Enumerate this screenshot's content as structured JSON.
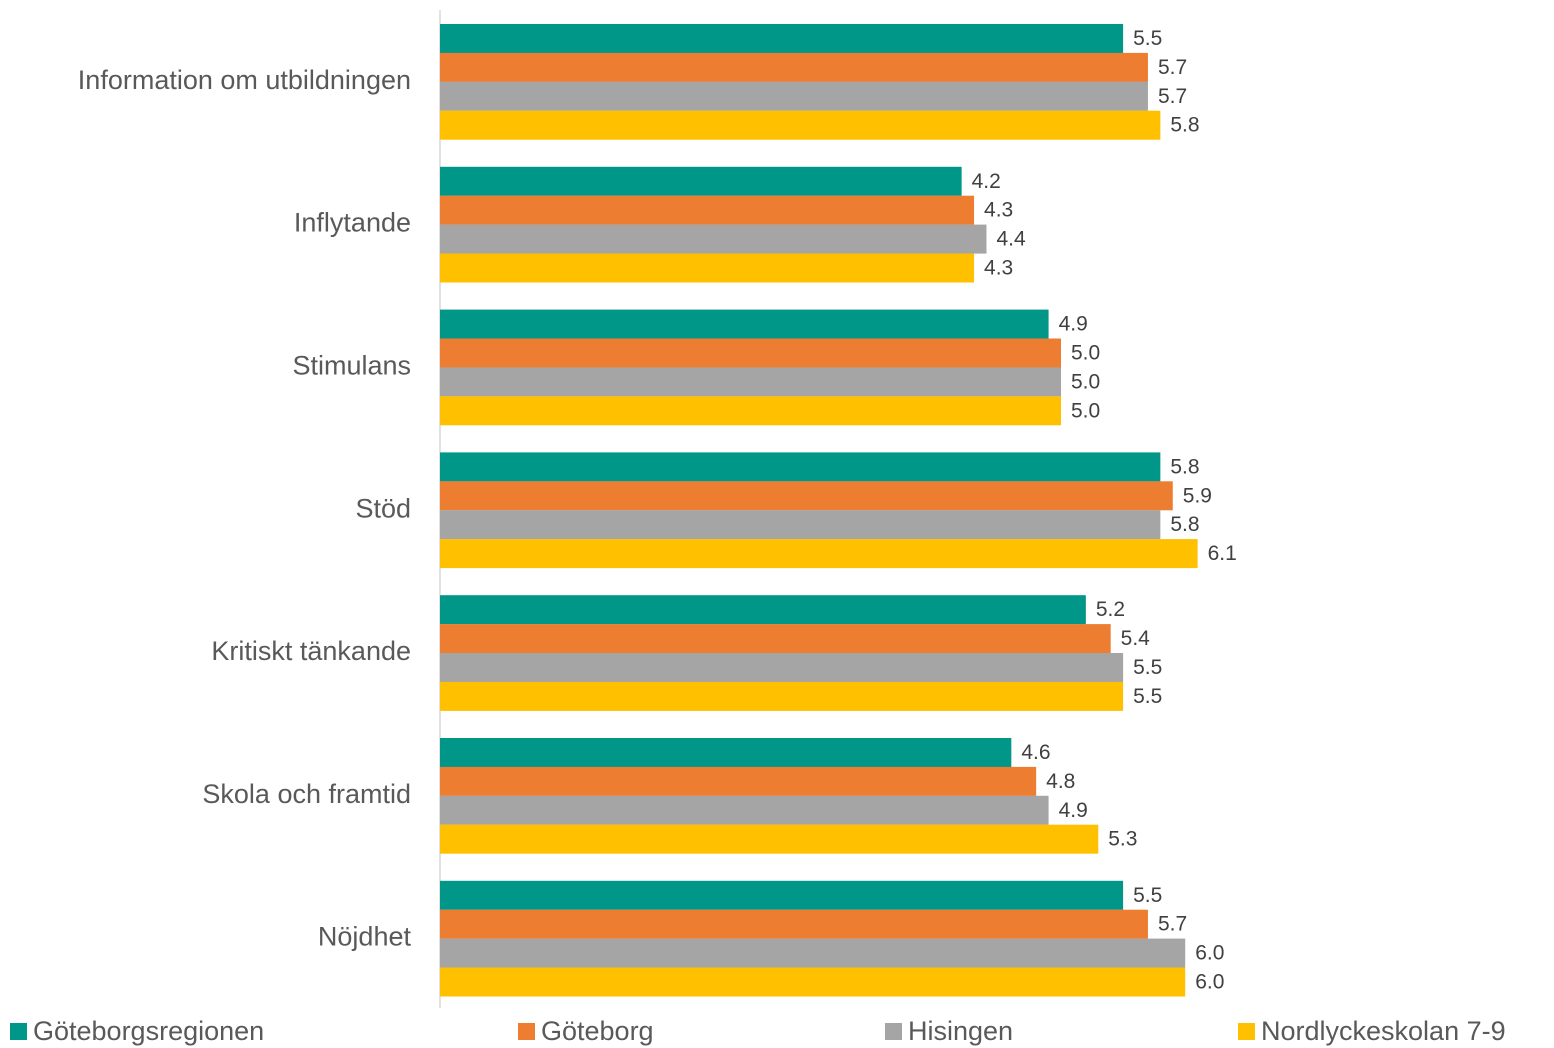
{
  "chart_data": {
    "type": "bar",
    "orientation": "horizontal",
    "categories": [
      "Information om utbildningen",
      "Inflytande",
      "Stimulans",
      "Stöd",
      "Kritiskt tänkande",
      "Skola och framtid",
      "Nöjdhet"
    ],
    "series": [
      {
        "name": "Göteborgsregionen",
        "color": "#009688",
        "values": [
          5.5,
          4.2,
          4.9,
          5.8,
          5.2,
          4.6,
          5.5
        ]
      },
      {
        "name": "Göteborg",
        "color": "#ED7D31",
        "values": [
          5.7,
          4.3,
          5.0,
          5.9,
          5.4,
          4.8,
          5.7
        ]
      },
      {
        "name": "Hisingen",
        "color": "#A5A5A5",
        "values": [
          5.7,
          4.4,
          5.0,
          5.8,
          5.5,
          4.9,
          6.0
        ]
      },
      {
        "name": "Nordlyckeskolan 7-9",
        "color": "#FFC000",
        "values": [
          5.8,
          4.3,
          5.0,
          6.1,
          5.5,
          5.3,
          6.0
        ]
      }
    ],
    "value_labels": [
      [
        "5.5",
        "4.2",
        "4.9",
        "5.8",
        "5.2",
        "4.6",
        "5.5"
      ],
      [
        "5.7",
        "4.3",
        "5.0",
        "5.9",
        "5.4",
        "4.8",
        "5.7"
      ],
      [
        "5.7",
        "4.4",
        "5.0",
        "5.8",
        "5.5",
        "4.9",
        "6.0"
      ],
      [
        "5.8",
        "4.3",
        "5.0",
        "6.1",
        "5.5",
        "5.3",
        "6.0"
      ]
    ],
    "legend_position": "bottom",
    "grid": false,
    "xaxis_visible": false
  }
}
